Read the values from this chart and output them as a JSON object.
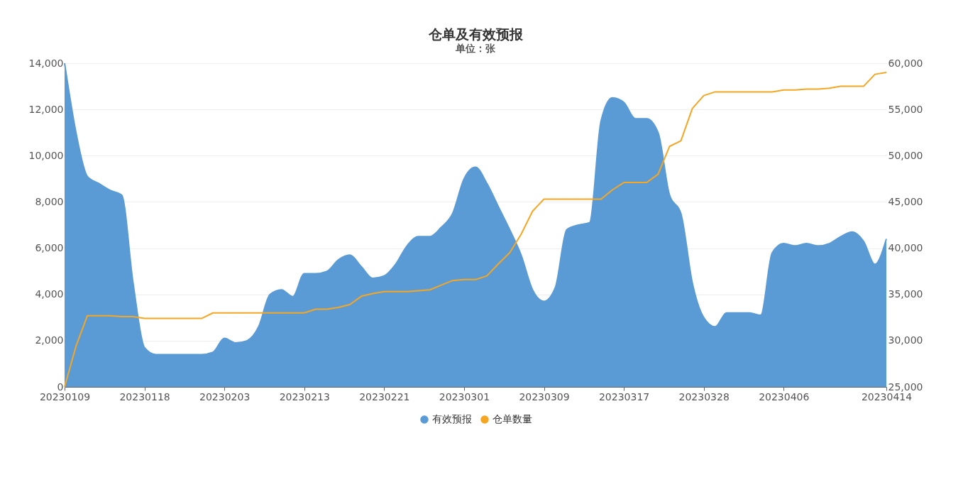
{
  "chart_data": {
    "type": "area",
    "title": "仓单及有效预报",
    "subtitle": "单位：张",
    "categories": [
      "20230109",
      null,
      null,
      null,
      null,
      null,
      null,
      "20230118",
      null,
      null,
      null,
      null,
      null,
      null,
      "20230203",
      null,
      null,
      null,
      null,
      null,
      null,
      "20230213",
      null,
      null,
      null,
      null,
      null,
      null,
      "20230221",
      null,
      null,
      null,
      null,
      null,
      null,
      "20230301",
      null,
      null,
      null,
      null,
      null,
      null,
      "20230309",
      null,
      null,
      null,
      null,
      null,
      null,
      "20230317",
      null,
      null,
      null,
      null,
      null,
      null,
      "20230328",
      null,
      null,
      null,
      null,
      null,
      null,
      "20230406",
      null,
      null,
      null,
      null,
      null,
      null,
      null,
      null,
      "20230414"
    ],
    "series": [
      {
        "name": "有效预报",
        "color": "#5b9bd5",
        "values": [
          14000,
          11000,
          9100,
          8800,
          8500,
          8300,
          4500,
          1700,
          1400,
          1400,
          1400,
          1400,
          1400,
          1500,
          2100,
          1900,
          2000,
          2600,
          4000,
          4200,
          3900,
          4900,
          4900,
          5000,
          5500,
          5700,
          5200,
          4700,
          4800,
          5300,
          6100,
          6500,
          6500,
          6900,
          7500,
          9000,
          9500,
          8800,
          7800,
          6800,
          5700,
          4200,
          3700,
          4300,
          6800,
          7000,
          7100,
          11500,
          12500,
          12300,
          11600,
          11600,
          11000,
          8300,
          7500,
          4500,
          3000,
          2600,
          3200,
          3200,
          3200,
          3100,
          5800,
          6200,
          6100,
          6200,
          6100,
          6200,
          6500,
          6700,
          6300,
          5300,
          6400
        ]
      },
      {
        "name": "仓单数量",
        "type": "line",
        "axis": "y2",
        "color": "#f5a623",
        "values": [
          25000,
          29400,
          32700,
          32700,
          32700,
          32600,
          32600,
          32400,
          32400,
          32400,
          32400,
          32400,
          32400,
          33000,
          33000,
          33000,
          33000,
          33000,
          33000,
          33000,
          33000,
          33000,
          33400,
          33400,
          33600,
          33900,
          34800,
          35100,
          35300,
          35300,
          35300,
          35400,
          35500,
          36000,
          36500,
          36600,
          36600,
          37000,
          38300,
          39500,
          41500,
          44000,
          45300,
          45300,
          45300,
          45300,
          45300,
          45300,
          46300,
          47100,
          47100,
          47100,
          48000,
          51000,
          51600,
          55100,
          56500,
          56900,
          56900,
          56900,
          56900,
          56900,
          56900,
          57100,
          57100,
          57200,
          57200,
          57300,
          57500,
          57500,
          57500,
          58800,
          59000
        ]
      }
    ],
    "ylim": [
      0,
      14000
    ],
    "yticks": [
      0,
      {
        "value": 2000,
        "label": "2,000"
      },
      {
        "value": 4000,
        "label": "4,000"
      },
      {
        "value": 6000,
        "label": "6,000"
      },
      {
        "value": 8000,
        "label": "8,000"
      },
      {
        "value": 10000,
        "label": "10,000"
      },
      {
        "value": 12000,
        "label": "12,000"
      },
      {
        "value": 14000,
        "label": "14,000"
      }
    ],
    "y2lim": [
      25000,
      60000
    ],
    "y2ticks": [
      {
        "value": 25000,
        "label": "25,000"
      },
      {
        "value": 30000,
        "label": "30,000"
      },
      {
        "value": 35000,
        "label": "35,000"
      },
      {
        "value": 40000,
        "label": "40,000"
      },
      {
        "value": 45000,
        "label": "45,000"
      },
      {
        "value": 50000,
        "label": "50,000"
      },
      {
        "value": 55000,
        "label": "55,000"
      },
      {
        "value": 60000,
        "label": "60,000"
      }
    ],
    "grid": "y",
    "legend": "bottom",
    "marker": "none"
  }
}
